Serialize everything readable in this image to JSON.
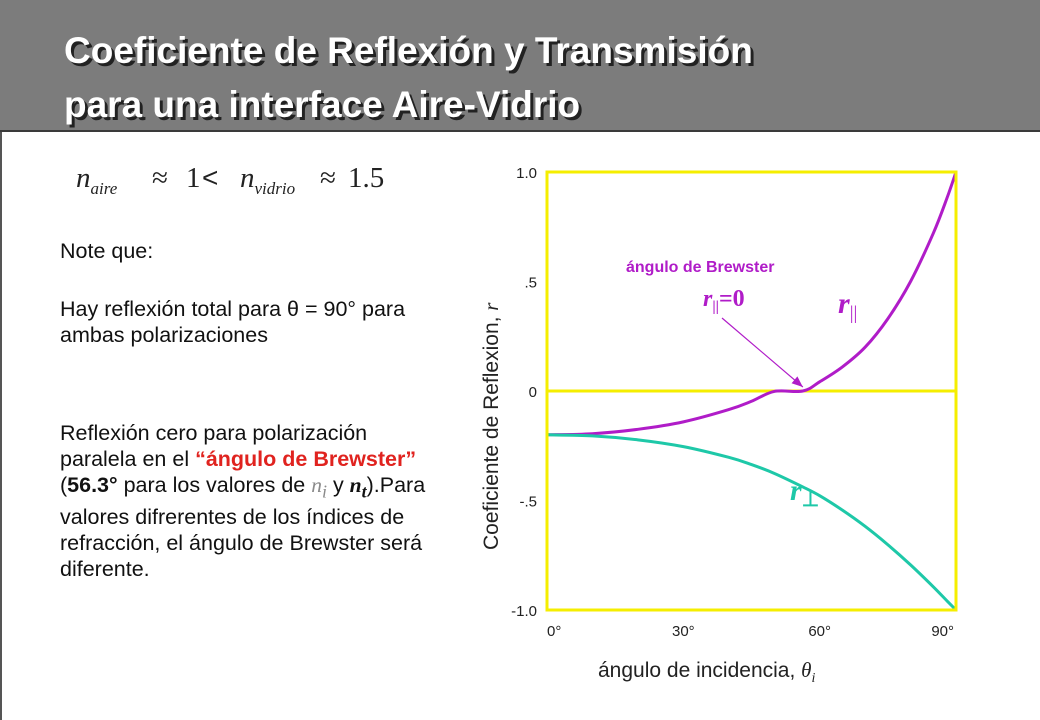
{
  "title": {
    "line1": "Coeficiente de Reflexión y Transmisión",
    "line2": "para una interface Aire-Vidrio"
  },
  "formula": {
    "n_symbol_1": "n",
    "sub_1": "aire",
    "approx_1": "≈",
    "value_1": "1",
    "less_than": "<",
    "n_symbol_2": "n",
    "sub_2": "vidrio",
    "approx_2": "≈",
    "value_2": "1.5"
  },
  "notes": {
    "heading": "Note que:",
    "para1": "Hay reflexión total para θ = 90° para ambas polarizaciones",
    "para2_a": "Reflexión cero para polarización paralela en el ",
    "para2_quote_open": "“",
    "para2_brewster": "ángulo de Brewster",
    "para2_quote_close": "”",
    "para2_b": " (",
    "para2_angle": "56.3°",
    "para2_c": " para los valores de ",
    "para2_ni_n": "n",
    "para2_ni_sub": "i",
    "para2_d": " y ",
    "para2_nt_n": "n",
    "para2_nt_sub": "t",
    "para2_e": ").Para valores difrerentes de los índices de refracción, el ángulo de Brewster será diferente."
  },
  "chart_data": {
    "type": "line",
    "xlabel": "ángulo de incidencia, ",
    "xlabel_symbol": "θ",
    "xlabel_sub": "i",
    "ylabel": "Coeficiente de Reflexion, ",
    "ylabel_symbol": "r",
    "xlim": [
      0,
      90
    ],
    "ylim": [
      -1.0,
      1.0
    ],
    "x_ticks": [
      0,
      30,
      60,
      90
    ],
    "x_tick_labels": [
      "0°",
      "30°",
      "60°",
      "90°"
    ],
    "y_ticks": [
      1.0,
      0.5,
      0,
      -0.5,
      -1.0
    ],
    "y_tick_labels": [
      "1.0",
      ".5",
      "0",
      "-.5",
      "-1.0"
    ],
    "zero_line": true,
    "series": [
      {
        "name": "r||",
        "color": "#b01cc8",
        "x": [
          0,
          10,
          20,
          30,
          40,
          45,
          50,
          56.3,
          60,
          65,
          70,
          75,
          80,
          85,
          88,
          90
        ],
        "y": [
          -0.2,
          -0.195,
          -0.175,
          -0.141,
          -0.085,
          -0.047,
          -0.002,
          0.0,
          0.042,
          0.11,
          0.2,
          0.33,
          0.5,
          0.72,
          0.88,
          1.0
        ]
      },
      {
        "name": "r⊥",
        "color": "#1ec8a8",
        "x": [
          0,
          10,
          20,
          30,
          40,
          45,
          50,
          56.3,
          60,
          65,
          70,
          75,
          80,
          85,
          88,
          90
        ],
        "y": [
          -0.2,
          -0.205,
          -0.223,
          -0.254,
          -0.303,
          -0.336,
          -0.376,
          -0.438,
          -0.478,
          -0.544,
          -0.618,
          -0.702,
          -0.794,
          -0.894,
          -0.958,
          -1.0
        ]
      }
    ],
    "labels": {
      "r_par_n": "r",
      "r_par_sub": "||",
      "r_perp_n": "r",
      "r_perp_sub": "⊥"
    },
    "annotation": {
      "title": "ángulo de Brewster",
      "eq_n": "r",
      "eq_sub": "||",
      "eq_rest": "=0",
      "x": 56.3,
      "y": 0.0
    },
    "colors": {
      "frame": "#f5ee00",
      "r_parallel": "#b01cc8",
      "r_perpendicular": "#1ec8a8",
      "annotation": "#b01cc8"
    }
  }
}
